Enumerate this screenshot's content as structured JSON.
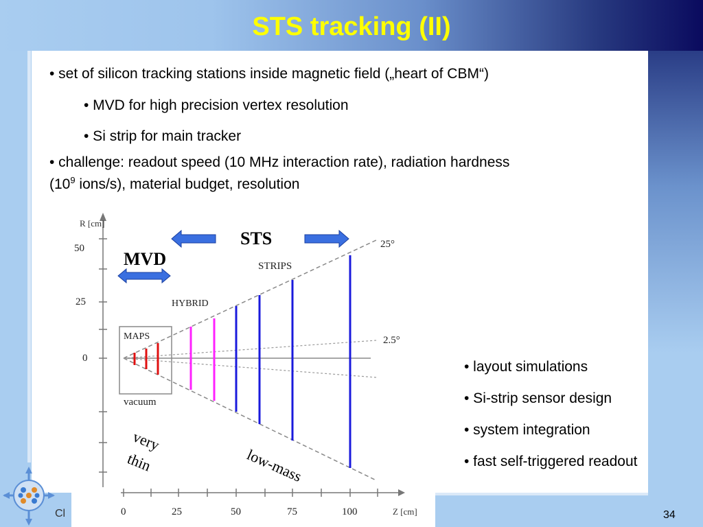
{
  "title": "STS tracking (II)",
  "bullets": {
    "b1": "• set of silicon tracking stations inside magnetic field („heart of CBM“)",
    "b1a": "• MVD for high precision vertex resolution",
    "b1b": "• Si strip for main tracker",
    "b2_line1": "• challenge: readout speed (10 MHz interaction rate), radiation hardness",
    "b2_line2_pre": "(10",
    "b2_sup": "9",
    "b2_line2_post": " ions/s), material budget, resolution"
  },
  "right_bullets": [
    "• layout simulations",
    "• Si-strip sensor design",
    "• system integration",
    "• fast self-triggered readout"
  ],
  "diagram": {
    "y_axis_label": "R [cm]",
    "x_axis_label": "Z [cm]",
    "y_ticks": [
      "50",
      "25",
      "0"
    ],
    "x_ticks": [
      "0",
      "25",
      "50",
      "75",
      "100"
    ],
    "sts_label": "STS",
    "mvd_label": "MVD",
    "strips_label": "STRIPS",
    "hybrid_label": "HYBRID",
    "maps_label": "MAPS",
    "vacuum_label": "vacuum",
    "angle_25": "25°",
    "angle_2_5": "2.5°",
    "very_thin_line1": "very",
    "very_thin_line2": "thin",
    "low_mass": "low-mass"
  },
  "footer_text": "Cl",
  "page_number": "34",
  "colors": {
    "title": "#ffff00",
    "strip_blue": "#1a1adc",
    "hybrid_magenta": "#ff20ff",
    "maps_red": "#e01010",
    "arrow_blue": "#3a6fe0"
  }
}
